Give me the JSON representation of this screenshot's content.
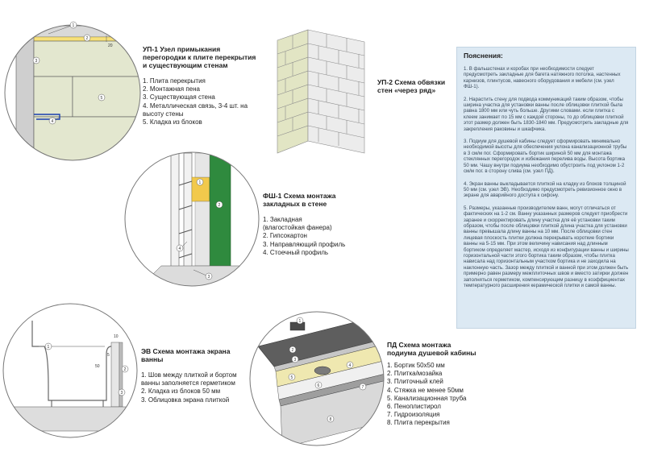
{
  "up1": {
    "title_lines": [
      "УП-1 Узел примыкания",
      "перегородки к плите перекрытия",
      "и существующим стенам"
    ],
    "items": [
      "1. Плита перекрытия",
      "2. Монтажная пена",
      "3. Существующая стена",
      "4. Металлическая связь, 3-4 шт. на",
      "высоту стены",
      "5. Кладка из блоков"
    ],
    "dim_label": "20"
  },
  "up2": {
    "title_lines": [
      "УП-2 Схема обвязки",
      "стен «через ряд»"
    ]
  },
  "fsh1": {
    "title_lines": [
      "ФШ-1 Схема монтажа",
      "закладных в стене"
    ],
    "items": [
      "1. Закладная",
      "(влагостойкая фанера)",
      "2. Гипсокартон",
      "3. Направляющий профиль",
      "4. Стоечный профиль"
    ]
  },
  "ev": {
    "title_lines": [
      "ЭВ Схема монтажа экрана",
      "ванны"
    ],
    "items": [
      "1. Шов между плиткой и бортом",
      "ванны заполняется герметиком",
      "2. Кладка из блоков 50 мм",
      "3. Облицовка экрана плиткой"
    ],
    "dim_labels": [
      "5",
      "50",
      "10"
    ]
  },
  "pd": {
    "title_lines": [
      "ПД Схема монтажа",
      "подиума душевой кабины"
    ],
    "items": [
      "1. Бортик 50х50 мм",
      "2. Плитка/мозайка",
      "3. Плиточный клей",
      "4. Стяжка не менее 50мм",
      "5. Канализационная труба",
      "6. Пеноплистирол",
      "7. Гидроизоляция",
      "8. Плита перекрытия"
    ]
  },
  "notes": {
    "title": "Пояснения:",
    "paragraphs": [
      "1. В фальшстенах и коробах при необходимости следует предусмотреть закладные для багета натяжного потолка, настенных карнизов, плинтусов, навесного оборудования и мебели (см. узел ФШ-1).",
      "2. Нарастить стену для подвода коммуникаций таким образом, чтобы ширина участка для установки ванны после облицовки плиткой была равна 1800 мм или чуть больше. Другими словами. если плитка с клеем занимает по 15 мм с каждой стороны, то до облицовки плиткой этот размер должен быть 1830-1840 мм. Предусмотреть закладные для закрепления раковины и шкафчика.",
      "3. Подиум для душевой кабины следует сформировать минимально необходимой высоты для обеспечения уклона канализационной трубы в 3 см/м пог. Сформировать бортик шириной 50 мм для монтажа стеклянных перегородок и избежания перелива воды. Высота бортика 50 мм. Чашу внутри подиума необходимо обустроить под уклоном 1-2 см/м пог. в сторону слива (см. узел ПД).",
      "4. Экран ванны выкладывается плиткой на кладку из блоков толщиной 50 мм (см. узел ЭВ). Необходимо предусмотреть ревизионное окно в экране для аварийного доступа к сифону.",
      "5. Размеры, указанные производителем ванн, могут отличаться от фактических на 1-2 см. Ванну указанных размеров следует приобрести заранее и скорректировать длину участка для её установки таким образом, чтобы после облицовки плиткой длина участка для установки ванны превышала длину ванны на 10 мм. После облицовки стен лицевая плоскость плитки должна перекрывать короткие бортики ванны на 5-15 мм. При этом величину нависания над длинным бортиком определяет мастер, исходя из конфигурации ванны и ширины горизонтальной части этого бортика таким образом, чтобы плитка нависала над горизонтальным участком бортика и не заходила на наклонную часть. Зазор между плиткой и ванной при этом должен быть примерно равен размеру межплиточных швов и вместо затирки должен заполняться герметиком, компенсирующим разницу в коэффициентах температурного расширения керамической плитки и самой ванны."
    ]
  }
}
